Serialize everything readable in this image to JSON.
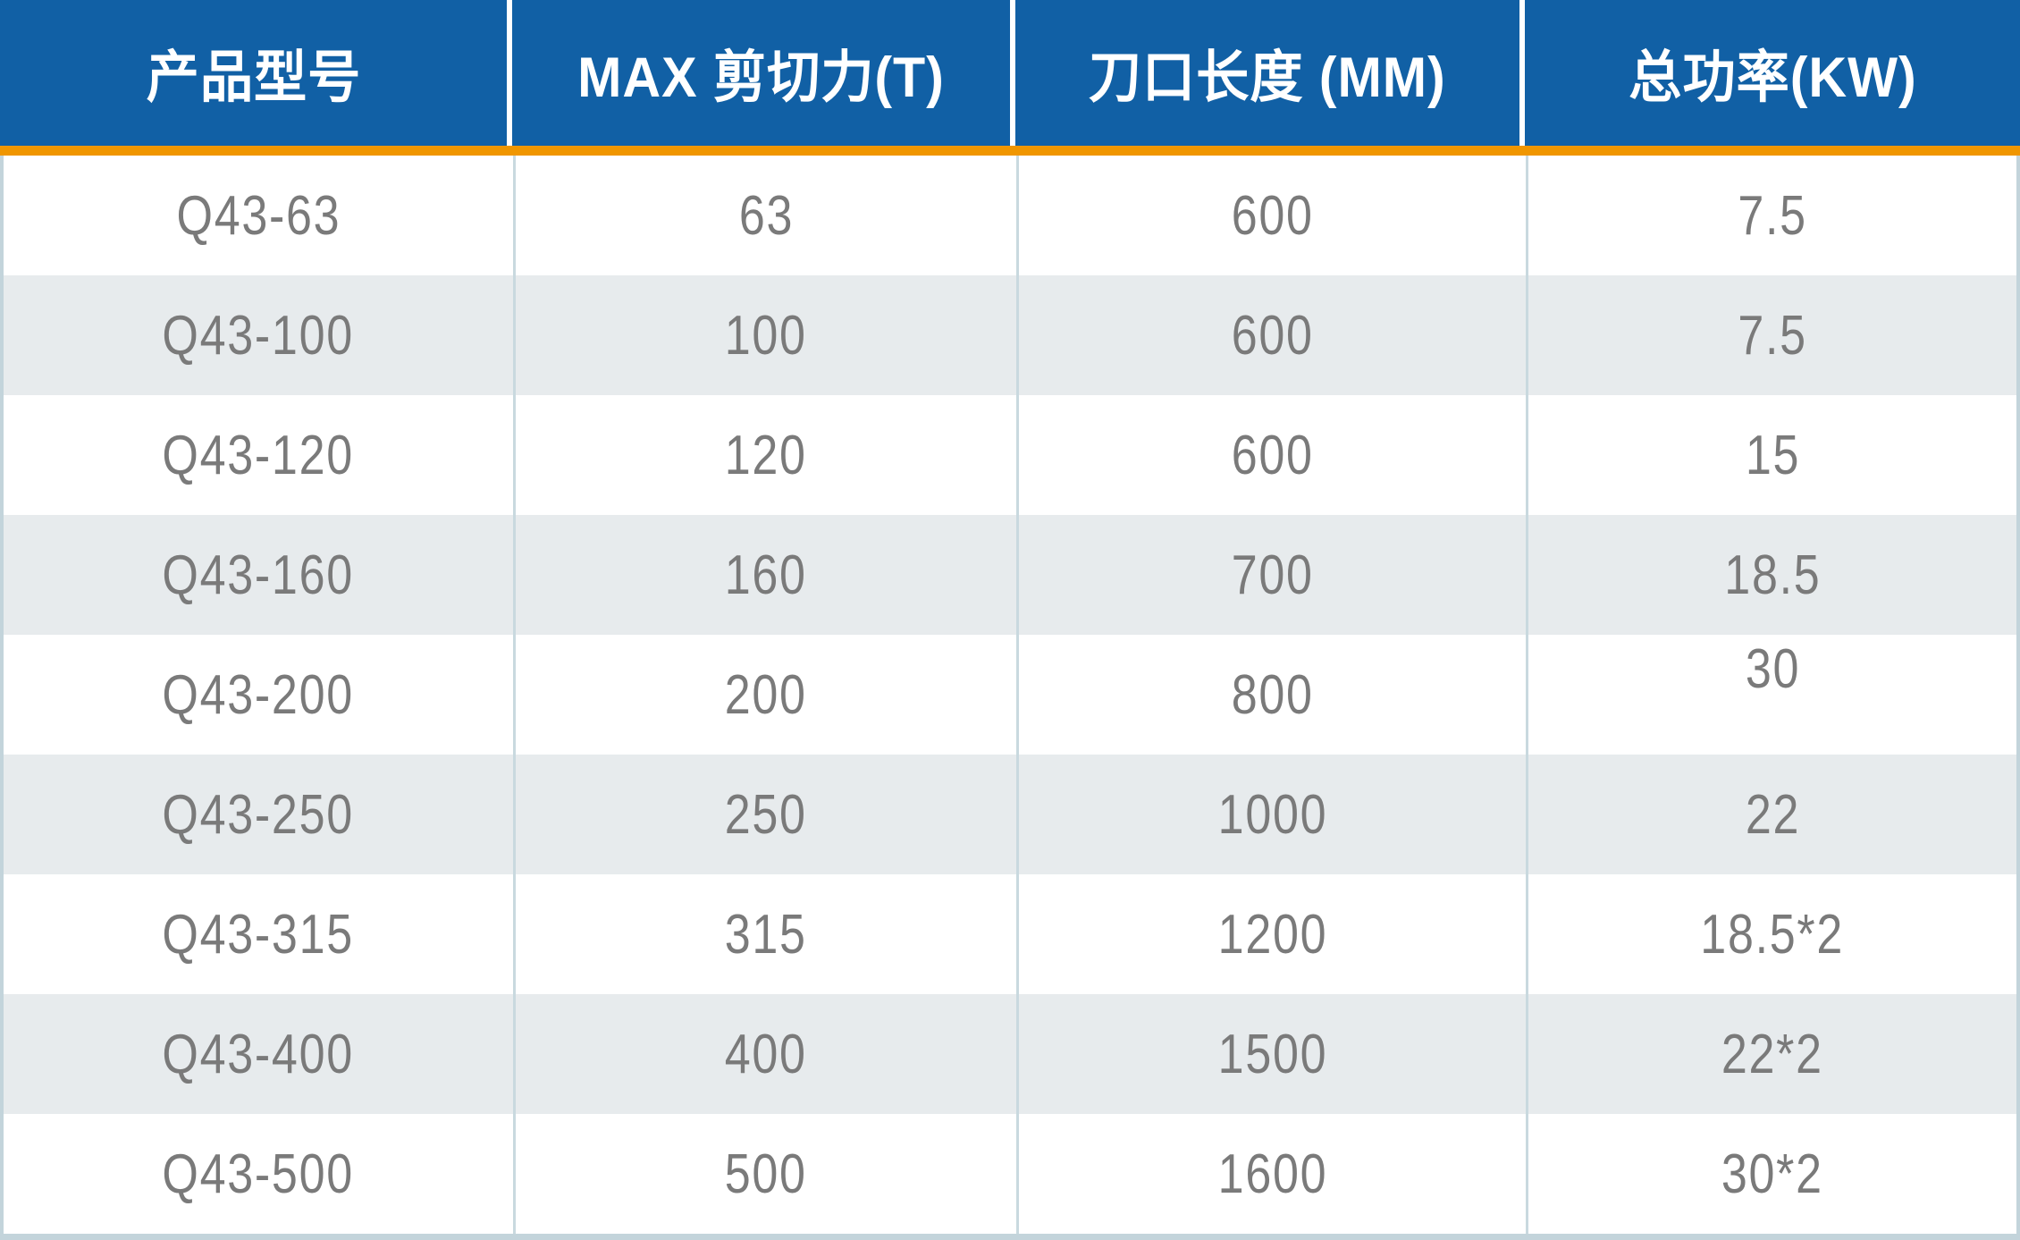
{
  "colors": {
    "header_bg": "#1160A5",
    "header_text": "#FFFFFF",
    "accent_orange": "#F09600",
    "row_bg": "#FFFFFF",
    "row_alt_bg": "#E7EBED",
    "body_text": "#7A7A7A",
    "divider": "#C9D9DF",
    "outer_border": "#C3D4DB"
  },
  "table": {
    "columns": [
      {
        "label": "产品型号",
        "field": "model"
      },
      {
        "label": "MAX 剪切力(T)",
        "field": "max_shear_t"
      },
      {
        "label": "刀口长度 (MM)",
        "field": "blade_length_mm"
      },
      {
        "label": "总功率(KW)",
        "field": "total_power_kw"
      }
    ],
    "rows": [
      {
        "model": "Q43-63",
        "max_shear_t": "63",
        "blade_length_mm": "600",
        "total_power_kw": "7.5"
      },
      {
        "model": "Q43-100",
        "max_shear_t": "100",
        "blade_length_mm": "600",
        "total_power_kw": "7.5"
      },
      {
        "model": "Q43-120",
        "max_shear_t": "120",
        "blade_length_mm": "600",
        "total_power_kw": "15"
      },
      {
        "model": "Q43-160",
        "max_shear_t": "160",
        "blade_length_mm": "700",
        "total_power_kw": "18.5"
      },
      {
        "model": "Q43-200",
        "max_shear_t": "200",
        "blade_length_mm": "800",
        "total_power_kw": "30",
        "total_power_valign": "top"
      },
      {
        "model": "Q43-250",
        "max_shear_t": "250",
        "blade_length_mm": "1000",
        "total_power_kw": "22"
      },
      {
        "model": "Q43-315",
        "max_shear_t": "315",
        "blade_length_mm": "1200",
        "total_power_kw": "18.5*2"
      },
      {
        "model": "Q43-400",
        "max_shear_t": "400",
        "blade_length_mm": "1500",
        "total_power_kw": "22*2"
      },
      {
        "model": "Q43-500",
        "max_shear_t": "500",
        "blade_length_mm": "1600",
        "total_power_kw": "30*2"
      }
    ]
  }
}
